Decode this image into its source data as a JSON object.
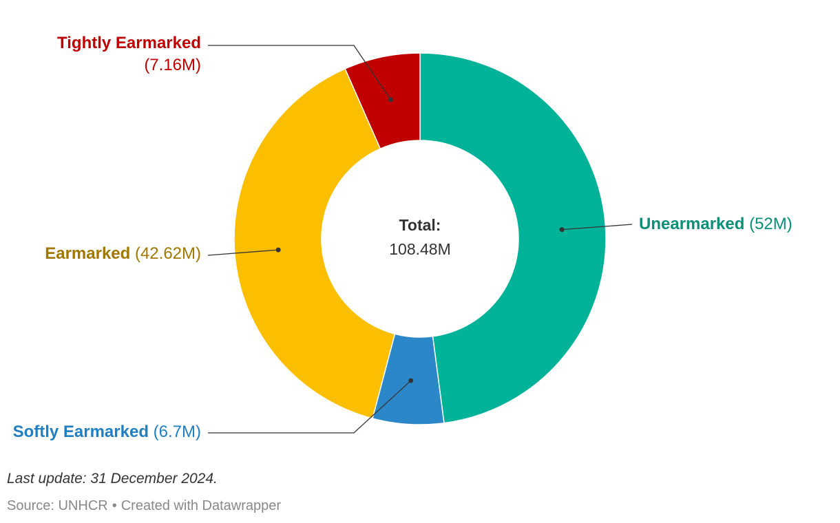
{
  "chart_data": {
    "type": "pie",
    "donut": true,
    "center": {
      "title": "Total:",
      "value": "108.48M"
    },
    "unit": "M",
    "slices": [
      {
        "name": "Unearmarked",
        "value": 52,
        "value_label": "(52M)",
        "color": "#00b398",
        "label_color": "#0b8f78"
      },
      {
        "name": "Softly Earmarked",
        "value": 6.7,
        "value_label": "(6.7M)",
        "color": "#2b87c8",
        "label_color": "#1f7fc0"
      },
      {
        "name": "Earmarked",
        "value": 42.62,
        "value_label": "(42.62M)",
        "color": "#fbbf00",
        "label_color": "#a07800"
      },
      {
        "name": "Tightly Earmarked",
        "value": 7.16,
        "value_label": "(7.16M)",
        "color": "#c00000",
        "label_color": "#c00000"
      }
    ]
  },
  "footer": {
    "note": "Last update: 31 December 2024.",
    "source": "Source: UNHCR",
    "separator": "•",
    "credit": "Created with Datawrapper"
  }
}
